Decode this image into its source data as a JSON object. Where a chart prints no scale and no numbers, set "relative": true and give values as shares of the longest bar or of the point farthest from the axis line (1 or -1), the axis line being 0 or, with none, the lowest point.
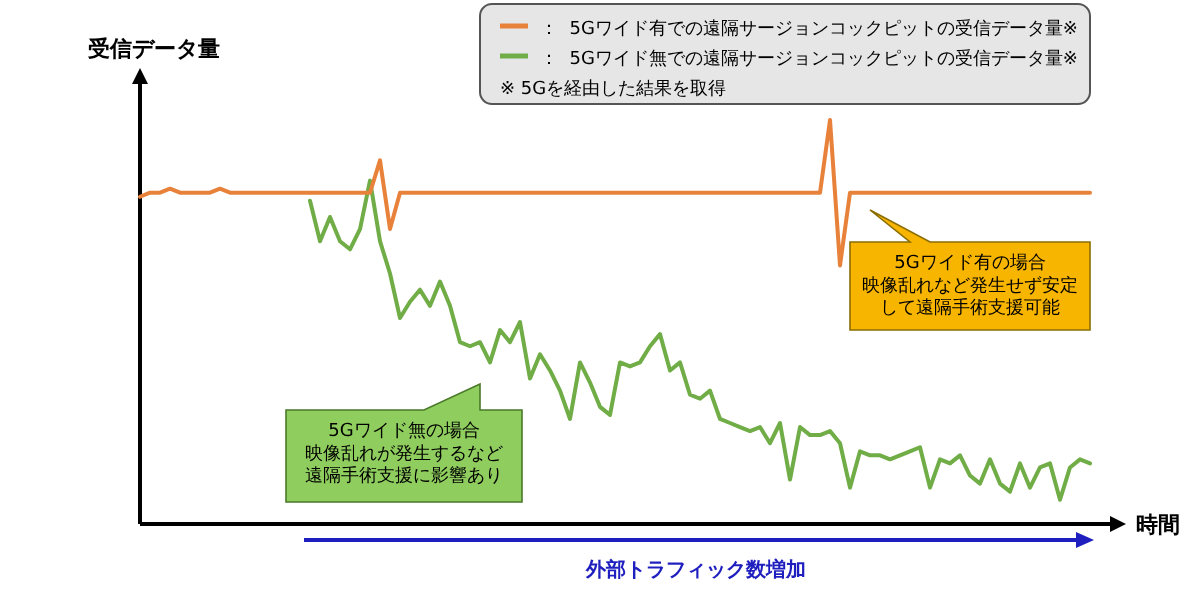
{
  "chart_data": {
    "type": "line",
    "relative": true,
    "legend": "top right",
    "ylabel": "受信データ量",
    "xlabel": "時間",
    "categories": [
      null,
      null,
      null,
      null,
      null,
      null,
      null,
      null,
      null,
      null,
      null,
      null,
      null,
      null,
      null,
      null,
      null,
      null,
      null,
      null,
      null,
      null,
      null,
      null,
      null,
      null,
      null,
      null,
      null,
      null,
      null,
      null,
      null,
      null,
      null,
      null,
      null,
      null,
      null,
      null,
      null,
      null,
      null,
      null,
      null,
      null,
      null,
      null,
      null,
      null,
      null,
      null,
      null,
      null,
      null,
      null,
      null,
      null,
      null,
      null,
      null,
      null,
      null,
      null,
      null,
      null,
      null,
      null,
      null,
      null,
      null,
      null,
      null,
      null,
      null,
      null,
      null,
      null,
      null,
      null,
      null,
      null,
      null,
      null,
      null,
      null,
      null,
      null,
      null,
      null,
      null,
      null,
      null,
      null,
      null,
      null
    ],
    "series": [
      {
        "name": "：  5Gワイド無での遠隔サージョンコックピットの受信データ量※",
        "color": "#70ad47",
        "values": [
          null,
          null,
          null,
          null,
          null,
          null,
          null,
          null,
          null,
          null,
          null,
          null,
          null,
          null,
          null,
          null,
          null,
          0.8,
          0.7,
          0.76,
          0.7,
          0.68,
          0.73,
          0.85,
          0.7,
          0.62,
          0.51,
          0.55,
          0.58,
          0.54,
          0.6,
          0.54,
          0.45,
          0.44,
          0.45,
          0.4,
          0.48,
          0.45,
          0.5,
          0.36,
          0.42,
          0.38,
          0.33,
          0.26,
          0.4,
          0.35,
          0.29,
          0.27,
          0.4,
          0.39,
          0.4,
          0.44,
          0.47,
          0.38,
          0.4,
          0.32,
          0.31,
          0.33,
          0.26,
          0.25,
          0.24,
          0.23,
          0.24,
          0.2,
          0.25,
          0.11,
          0.24,
          0.22,
          0.22,
          0.23,
          0.2,
          0.09,
          0.18,
          0.17,
          0.17,
          0.16,
          0.17,
          0.18,
          0.19,
          0.09,
          0.16,
          0.15,
          0.17,
          0.12,
          0.1,
          0.16,
          0.1,
          0.08,
          0.15,
          0.09,
          0.14,
          0.15,
          0.06,
          0.14,
          0.16,
          0.15
        ]
      },
      {
        "name": "：  5Gワイド有での遠隔サージョンコックピットの受信データ量※",
        "color": "#e8823a",
        "values": [
          0.81,
          0.82,
          0.82,
          0.83,
          0.82,
          0.82,
          0.82,
          0.82,
          0.83,
          0.82,
          0.82,
          0.82,
          0.82,
          0.82,
          0.82,
          0.82,
          0.82,
          0.82,
          0.82,
          0.82,
          0.82,
          0.82,
          0.82,
          0.82,
          0.9,
          0.73,
          0.82,
          0.82,
          0.82,
          0.82,
          0.82,
          0.82,
          0.82,
          0.82,
          0.82,
          0.82,
          0.82,
          0.82,
          0.82,
          0.82,
          0.82,
          0.82,
          0.82,
          0.82,
          0.82,
          0.82,
          0.82,
          0.82,
          0.82,
          0.82,
          0.82,
          0.82,
          0.82,
          0.82,
          0.82,
          0.82,
          0.82,
          0.82,
          0.82,
          0.82,
          0.82,
          0.82,
          0.82,
          0.82,
          0.82,
          0.82,
          0.82,
          0.82,
          0.82,
          1.0,
          0.64,
          0.82,
          0.82,
          0.82,
          0.82,
          0.82,
          0.82,
          0.82,
          0.82,
          0.82,
          0.82,
          0.82,
          0.82,
          0.82,
          0.82,
          0.82,
          0.82,
          0.82,
          0.82,
          0.82,
          0.82,
          0.82,
          0.82,
          0.82,
          0.82,
          0.82
        ]
      }
    ],
    "annotations": [
      "5Gワイド有の場合映像乱れなど発生せず安定して遠隔手術支援可能",
      "5Gワイド無の場合映像乱れが発生するなど遠隔手術支援に影響あり",
      "※ 5Gを経由した結果を取得",
      "外部トラフィック数増加"
    ]
  }
}
